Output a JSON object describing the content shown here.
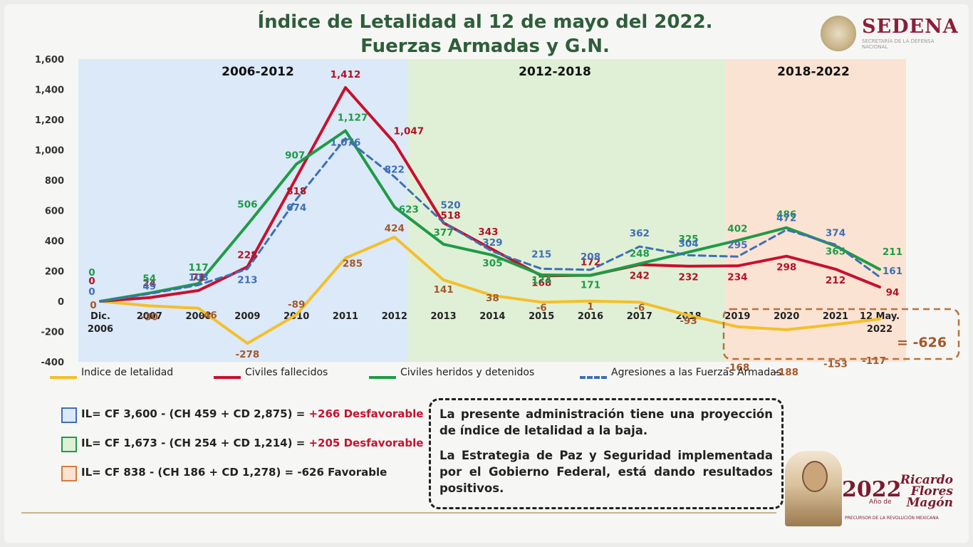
{
  "title_line1": "Índice de Letalidad al 12 de mayo del 2022.",
  "title_line2": "Fuerzas Armadas y G.N.",
  "logo": {
    "name": "SEDENA",
    "subtitle": "SECRETARÍA DE LA DEFENSA NACIONAL"
  },
  "chart_data": {
    "type": "line",
    "x": [
      "Dic. 2006",
      "2007",
      "2008",
      "2009",
      "2010",
      "2011",
      "2012",
      "2013",
      "2014",
      "2015",
      "2016",
      "2017",
      "2018",
      "2019",
      "2020",
      "2021",
      "12 May. 2022"
    ],
    "ylim": [
      -400,
      1600
    ],
    "yticks": [
      "1,600",
      "1,400",
      "1,200",
      "1,000",
      "800",
      "600",
      "400",
      "200",
      "0",
      "-200",
      "-400"
    ],
    "ytick_values": [
      1600,
      1400,
      1200,
      1000,
      800,
      600,
      400,
      200,
      0,
      -200,
      -400
    ],
    "periods": [
      {
        "label": "2006-2012",
        "from": 0,
        "to": 6,
        "color": "#dbe9f8"
      },
      {
        "label": "2012-2018",
        "from": 6,
        "to": 12,
        "color": "#dff0d6"
      },
      {
        "label": "2018-2022",
        "from": 12,
        "to": 16,
        "color": "#fbe3d3"
      }
    ],
    "series": [
      {
        "name": "Indice de letalidad",
        "color": "#f5bf2a",
        "dashed": false,
        "label_color": "#a3582a",
        "values": [
          0,
          -30,
          -46,
          -278,
          -89,
          285,
          424,
          141,
          38,
          -6,
          1,
          -6,
          -93,
          -168,
          -188,
          -153,
          -117
        ]
      },
      {
        "name": "Civiles fallecidos",
        "color": "#c8102e",
        "dashed": false,
        "label_color": "#b01326",
        "values": [
          0,
          24,
          71,
          228,
          818,
          1412,
          1047,
          518,
          343,
          168,
          172,
          242,
          232,
          234,
          298,
          212,
          94
        ]
      },
      {
        "name": "Civiles heridos y detenidos",
        "color": "#1f9b46",
        "dashed": false,
        "label_color": "#1f9b46",
        "values": [
          0,
          54,
          117,
          506,
          907,
          1127,
          623,
          377,
          305,
          174,
          171,
          248,
          325,
          402,
          486,
          365,
          211
        ]
      },
      {
        "name": "Agresiones a las Fuerzas Armadas",
        "color": "#3f6fb5",
        "dashed": true,
        "label_color": "#3f6fb5",
        "values": [
          0,
          49,
          108,
          213,
          674,
          1076,
          822,
          520,
          329,
          215,
          208,
          362,
          304,
          295,
          472,
          374,
          161
        ]
      }
    ],
    "total_label": "= -626"
  },
  "formulas": [
    {
      "box_color": "#3f6fb5",
      "fill": "#dbe9f8",
      "text": "IL= CF 3,600 - (CH 459 + CD 2,875) = ",
      "result": "+266  Desfavorable",
      "favorable": false
    },
    {
      "box_color": "#1f9b46",
      "fill": "#dff0d6",
      "text": "IL= CF 1,673 - (CH 254 + CD 1,214) = ",
      "result": "+205  Desfavorable",
      "favorable": false
    },
    {
      "box_color": "#d97a3a",
      "fill": "#fbe3d3",
      "text": "IL= CF 838 - (CH 186 + CD 1,278) = ",
      "result": "-626 Favorable",
      "favorable": true
    }
  ],
  "note": {
    "p1": "La presente administración tiene una proyección de índice de letalidad a la baja.",
    "p2": "La Estrategia de Paz y Seguridad implementada por el Gobierno Federal, está dando resultados positivos."
  },
  "emblem": {
    "year": "2022",
    "anio_de": "Año de",
    "name": "Ricardo Flores Magón",
    "subtitle": "PRECURSOR DE LA REVOLUCIÓN MEXICANA"
  }
}
